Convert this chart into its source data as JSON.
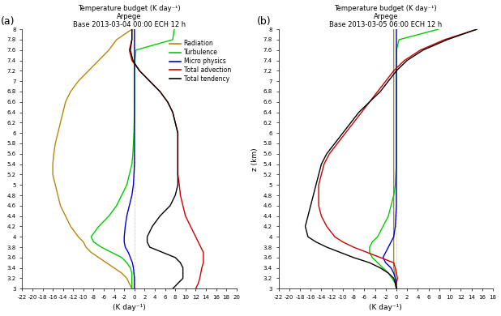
{
  "title_a": "Temperature budget (K day⁻¹)\nArpege\nBase 2013-03-04 00:00 ECH 12 h",
  "title_b": "Temperature budget (K day⁻¹)\nArpege\nBase 2013-03-05 06:00 ECH 12 h",
  "xlabel": "(K day⁻¹)",
  "ylabel": "z (km)",
  "xlim_a": [
    -22,
    20
  ],
  "xlim_b": [
    -22,
    18
  ],
  "ylim": [
    3.0,
    8.0
  ],
  "xticks_a": [
    -22,
    -20,
    -18,
    -16,
    -14,
    -12,
    -10,
    -8,
    -6,
    -4,
    -2,
    0,
    2,
    4,
    6,
    8,
    10,
    12,
    14,
    16,
    18,
    20
  ],
  "xticks_b": [
    -22,
    -20,
    -18,
    -16,
    -14,
    -12,
    -10,
    -8,
    -6,
    -4,
    -2,
    0,
    2,
    4,
    6,
    8,
    10,
    12,
    14,
    16,
    18
  ],
  "yticks": [
    3.0,
    3.2,
    3.4,
    3.6,
    3.8,
    4.0,
    4.2,
    4.4,
    4.6,
    4.8,
    5.0,
    5.2,
    5.4,
    5.6,
    5.8,
    6.0,
    6.2,
    6.4,
    6.6,
    6.8,
    7.0,
    7.2,
    7.4,
    7.6,
    7.8,
    8.0
  ],
  "colors": {
    "radiation": "#b8860b",
    "turbulence": "#00cc00",
    "microphysics": "#0000cc",
    "advection": "#cc0000",
    "tendency": "#000000"
  },
  "legend_labels": [
    "Radiation",
    "Turbulence",
    "Micro physics",
    "Total advection",
    "Total tendency"
  ],
  "panel_labels": [
    "(a)",
    "(b)"
  ],
  "background": "#ffffff",
  "z_a": [
    3.0,
    3.1,
    3.2,
    3.3,
    3.4,
    3.5,
    3.6,
    3.7,
    3.8,
    3.9,
    4.0,
    4.2,
    4.4,
    4.6,
    4.8,
    5.0,
    5.2,
    5.4,
    5.6,
    5.8,
    6.0,
    6.2,
    6.4,
    6.6,
    6.8,
    7.0,
    7.2,
    7.4,
    7.6,
    7.8,
    8.0
  ],
  "rad_a": [
    -0.5,
    -1.0,
    -1.5,
    -2.5,
    -4.0,
    -5.5,
    -7.0,
    -8.5,
    -9.5,
    -10.0,
    -11.0,
    -12.5,
    -13.5,
    -14.5,
    -15.0,
    -15.5,
    -16.0,
    -16.0,
    -15.8,
    -15.5,
    -15.0,
    -14.5,
    -14.0,
    -13.5,
    -12.5,
    -11.0,
    -9.0,
    -7.0,
    -5.0,
    -3.5,
    -0.5
  ],
  "turb_a": [
    -0.5,
    -0.5,
    -0.5,
    -0.5,
    -0.8,
    -1.5,
    -2.5,
    -4.5,
    -6.5,
    -8.0,
    -8.5,
    -7.0,
    -5.0,
    -3.5,
    -2.5,
    -1.5,
    -1.0,
    -0.5,
    -0.3,
    -0.2,
    -0.1,
    -0.05,
    -0.02,
    0.0,
    0.0,
    0.0,
    0.0,
    0.1,
    0.3,
    7.5,
    7.8
  ],
  "micro_a": [
    0.0,
    0.0,
    0.0,
    -0.1,
    -0.2,
    -0.4,
    -0.8,
    -1.2,
    -1.8,
    -2.0,
    -2.0,
    -1.8,
    -1.5,
    -1.0,
    -0.5,
    -0.2,
    -0.1,
    0.0,
    0.0,
    0.0,
    0.0,
    0.0,
    0.0,
    0.0,
    0.0,
    0.0,
    0.0,
    0.0,
    0.0,
    0.0,
    0.0
  ],
  "adv_a": [
    12.0,
    12.5,
    12.8,
    13.0,
    13.2,
    13.5,
    13.5,
    13.5,
    13.0,
    12.5,
    12.0,
    11.0,
    10.0,
    9.5,
    9.0,
    8.8,
    8.5,
    8.5,
    8.5,
    8.5,
    8.5,
    8.0,
    7.5,
    6.5,
    5.0,
    3.0,
    1.0,
    -0.5,
    -1.0,
    -0.5,
    -0.5
  ],
  "tend_a": [
    7.5,
    8.5,
    9.5,
    9.5,
    9.5,
    9.0,
    8.0,
    5.5,
    3.0,
    2.5,
    2.5,
    3.5,
    5.0,
    7.0,
    8.0,
    8.5,
    8.5,
    8.5,
    8.5,
    8.5,
    8.5,
    8.0,
    7.5,
    6.5,
    5.0,
    3.0,
    1.0,
    -0.3,
    -0.8,
    -0.5,
    -0.5
  ],
  "z_b": [
    3.0,
    3.1,
    3.2,
    3.3,
    3.4,
    3.5,
    3.6,
    3.7,
    3.8,
    3.9,
    4.0,
    4.2,
    4.4,
    4.6,
    4.8,
    5.0,
    5.2,
    5.4,
    5.6,
    5.8,
    6.0,
    6.2,
    6.4,
    6.6,
    6.8,
    7.0,
    7.2,
    7.4,
    7.6,
    7.8,
    8.0
  ],
  "rad_b": [
    0.0,
    -0.1,
    -0.2,
    -0.3,
    -0.5,
    -0.5,
    -0.5,
    -0.5,
    -0.5,
    -0.5,
    -0.5,
    -0.5,
    -0.5,
    -0.5,
    -0.5,
    -0.5,
    -0.5,
    -0.5,
    -0.5,
    -0.5,
    -0.5,
    -0.5,
    -0.5,
    -0.5,
    -0.5,
    -0.5,
    -0.5,
    -0.5,
    -0.5,
    -0.5,
    -0.5
  ],
  "turb_b": [
    0.0,
    -0.2,
    -0.8,
    -1.5,
    -2.5,
    -3.5,
    -4.5,
    -5.0,
    -5.0,
    -4.5,
    -3.5,
    -2.5,
    -1.5,
    -1.0,
    -0.5,
    -0.2,
    -0.1,
    0.0,
    0.0,
    0.0,
    0.0,
    0.0,
    0.0,
    0.0,
    0.0,
    0.0,
    0.0,
    0.0,
    0.0,
    0.5,
    7.8
  ],
  "micro_b": [
    0.0,
    0.0,
    -0.2,
    -0.5,
    -1.0,
    -2.0,
    -2.5,
    -2.0,
    -1.5,
    -1.0,
    -0.5,
    -0.2,
    -0.1,
    0.0,
    0.0,
    0.0,
    0.0,
    0.0,
    0.0,
    0.0,
    0.0,
    0.0,
    0.0,
    0.0,
    0.0,
    0.0,
    0.0,
    0.0,
    0.0,
    0.0,
    0.0
  ],
  "adv_b": [
    0.0,
    0.0,
    0.2,
    0.0,
    -0.2,
    -0.5,
    -3.0,
    -5.5,
    -8.0,
    -10.0,
    -11.5,
    -13.0,
    -14.0,
    -14.5,
    -14.5,
    -14.5,
    -14.0,
    -13.5,
    -12.5,
    -11.0,
    -9.5,
    -8.0,
    -6.5,
    -5.0,
    -3.5,
    -2.0,
    -0.5,
    1.5,
    4.5,
    9.0,
    15.0
  ],
  "tend_b": [
    0.0,
    -0.2,
    -0.5,
    -1.5,
    -3.0,
    -5.0,
    -8.0,
    -10.5,
    -13.0,
    -15.0,
    -16.5,
    -17.0,
    -16.5,
    -16.0,
    -15.5,
    -15.0,
    -14.5,
    -14.0,
    -13.0,
    -11.5,
    -10.0,
    -8.5,
    -7.0,
    -5.0,
    -3.0,
    -1.5,
    0.0,
    2.0,
    5.0,
    9.5,
    15.0
  ]
}
